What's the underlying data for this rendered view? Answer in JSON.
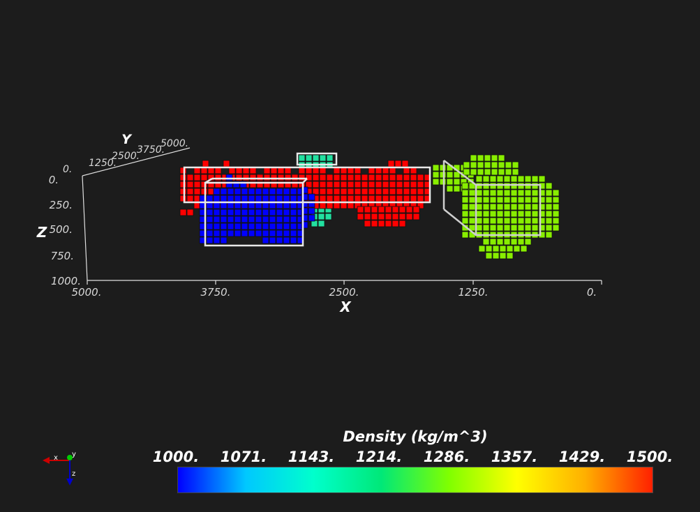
{
  "axes": {
    "x": {
      "title": "X",
      "ticks": [
        "5000.",
        "3750.",
        "2500.",
        "1250.",
        "0."
      ]
    },
    "y": {
      "title": "Y",
      "ticks": [
        "0.",
        "1250.",
        "2500.",
        "3750.",
        "5000."
      ]
    },
    "z": {
      "title": "Z",
      "ticks": [
        "0.",
        "250.",
        "500.",
        "750.",
        "1000."
      ]
    }
  },
  "orientation_widget": {
    "x_label": "x",
    "y_label": "y",
    "z_label": "z"
  },
  "colorbar": {
    "title": "Density (kg/m^3)",
    "labels": [
      "1000.",
      "1071.",
      "1143.",
      "1214.",
      "1286.",
      "1357.",
      "1429.",
      "1500."
    ],
    "colors": [
      "#0000ff",
      "#00c8ff",
      "#00ffcc",
      "#00e878",
      "#80ff00",
      "#ffff00",
      "#ffb000",
      "#ff2000"
    ]
  },
  "bodies": [
    {
      "name": "red-body",
      "color": "#ff0000",
      "density": 1500
    },
    {
      "name": "blue-body",
      "color": "#0000ff",
      "density": 1000
    },
    {
      "name": "green-body",
      "color": "#88ee00",
      "density": 1300
    },
    {
      "name": "teal-body",
      "color": "#22e0a0",
      "density": 1180
    }
  ]
}
